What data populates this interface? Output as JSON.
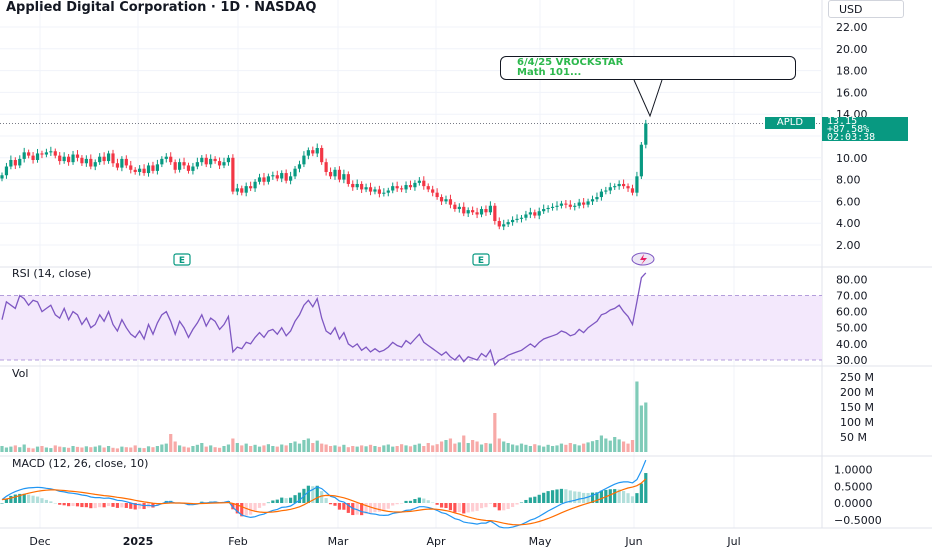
{
  "header": {
    "title": "Applied Digital Corporation · 1D · NASDAQ",
    "currency": "USD"
  },
  "annotation": {
    "line1": "6/4/25 VROCKSTAR",
    "line2": "Math 101..."
  },
  "price_label": {
    "symbol": "APLD",
    "price": "13.15",
    "change": "+87.58%",
    "countdown": "02:03:38"
  },
  "colors": {
    "up": "#089981",
    "down": "#f23645",
    "rsi_line": "#7e57c2",
    "rsi_band": "#f3e8fc",
    "macd_line": "#2196f3",
    "signal_line": "#ff6d00",
    "callout_text": "#2db84d"
  },
  "chart_data": [
    {
      "type": "candlestick",
      "panel": "price",
      "y_ticks": [
        "22.00",
        "20.00",
        "18.00",
        "16.00",
        "14.00",
        "12.00",
        "10.00",
        "8.00",
        "6.00",
        "4.00",
        "2.00"
      ],
      "x_ticks": [
        "Dec",
        "2025",
        "Feb",
        "Mar",
        "Apr",
        "May",
        "Jun",
        "Jul"
      ],
      "ylim": [
        0.5,
        23.5
      ],
      "last_price": 13.15,
      "earnings_markers": [
        "E",
        "E"
      ],
      "close": [
        8.4,
        9.2,
        9.8,
        9.3,
        9.9,
        10.5,
        10.2,
        9.8,
        10.4,
        10.3,
        10.5,
        10.6,
        10.2,
        9.7,
        10.1,
        9.6,
        10.3,
        10.0,
        9.5,
        9.9,
        9.2,
        9.6,
        10.1,
        9.7,
        10.4,
        9.5,
        9.1,
        9.9,
        9.3,
        8.9,
        8.7,
        9.0,
        8.6,
        9.3,
        8.8,
        9.4,
        9.9,
        10.1,
        9.6,
        8.9,
        9.6,
        9.3,
        8.8,
        9.2,
        9.6,
        10.0,
        9.4,
        9.9,
        9.7,
        9.3,
        9.6,
        10.0,
        6.9,
        7.2,
        6.8,
        7.4,
        7.2,
        7.8,
        8.2,
        7.8,
        8.3,
        8.4,
        8.1,
        8.6,
        7.9,
        8.3,
        9.0,
        9.4,
        10.2,
        10.7,
        10.4,
        10.9,
        9.6,
        8.7,
        8.3,
        8.9,
        8.0,
        8.5,
        7.6,
        7.3,
        7.6,
        7.1,
        7.3,
        6.9,
        7.1,
        6.7,
        6.8,
        7.0,
        7.4,
        7.2,
        7.1,
        7.5,
        7.3,
        7.7,
        7.9,
        7.4,
        7.1,
        6.8,
        6.4,
        6.0,
        6.2,
        5.7,
        5.3,
        5.5,
        4.9,
        5.2,
        5.0,
        4.8,
        5.3,
        5.0,
        5.6,
        4.2,
        3.7,
        3.9,
        4.1,
        4.3,
        4.4,
        4.5,
        4.8,
        5.0,
        4.7,
        5.1,
        5.3,
        5.4,
        5.5,
        5.6,
        5.8,
        5.7,
        5.5,
        5.6,
        5.9,
        5.7,
        6.0,
        6.2,
        6.4,
        6.9,
        7.0,
        7.3,
        7.4,
        7.6,
        7.4,
        7.2,
        6.8,
        8.3,
        11.2,
        13.15
      ]
    },
    {
      "type": "line",
      "panel": "RSI",
      "title": "RSI (14, close)",
      "y_ticks": [
        "80.00",
        "70.00",
        "60.00",
        "50.00",
        "40.00",
        "30.00"
      ],
      "band": [
        30,
        70
      ],
      "values": [
        55,
        66,
        64,
        62,
        70,
        68,
        64,
        67,
        66,
        60,
        62,
        64,
        58,
        56,
        62,
        55,
        60,
        58,
        52,
        56,
        50,
        52,
        58,
        54,
        60,
        52,
        48,
        55,
        50,
        46,
        44,
        48,
        43,
        52,
        46,
        53,
        58,
        60,
        54,
        46,
        54,
        50,
        44,
        49,
        53,
        58,
        51,
        56,
        54,
        49,
        52,
        57,
        35,
        38,
        37,
        41,
        40,
        44,
        47,
        44,
        48,
        49,
        46,
        50,
        45,
        48,
        54,
        58,
        64,
        67,
        63,
        68,
        56,
        48,
        46,
        50,
        43,
        47,
        40,
        38,
        40,
        36,
        38,
        35,
        37,
        35,
        36,
        38,
        41,
        39,
        38,
        42,
        40,
        43,
        46,
        41,
        39,
        37,
        35,
        33,
        35,
        32,
        30,
        33,
        29,
        32,
        31,
        30,
        34,
        32,
        36,
        27,
        30,
        31,
        33,
        34,
        35,
        36,
        38,
        40,
        38,
        41,
        43,
        44,
        45,
        46,
        48,
        47,
        45,
        46,
        49,
        47,
        50,
        52,
        54,
        58,
        59,
        61,
        62,
        64,
        60,
        57,
        52,
        66,
        81,
        84
      ]
    },
    {
      "type": "bar",
      "panel": "Vol",
      "title": "Vol",
      "y_ticks": [
        "250 M",
        "200 M",
        "150 M",
        "100 M",
        "50 M"
      ],
      "values": [
        20,
        15,
        18,
        22,
        16,
        25,
        14,
        12,
        18,
        20,
        15,
        13,
        22,
        18,
        16,
        14,
        20,
        17,
        15,
        19,
        16,
        18,
        22,
        15,
        20,
        14,
        12,
        18,
        16,
        15,
        22,
        14,
        13,
        19,
        16,
        20,
        25,
        28,
        60,
        35,
        22,
        18,
        15,
        20,
        24,
        30,
        18,
        22,
        16,
        14,
        20,
        25,
        45,
        30,
        22,
        28,
        20,
        24,
        18,
        22,
        26,
        20,
        18,
        25,
        22,
        30,
        35,
        28,
        40,
        45,
        30,
        38,
        28,
        25,
        20,
        22,
        18,
        24,
        16,
        20,
        18,
        22,
        19,
        24,
        20,
        17,
        22,
        25,
        18,
        20,
        26,
        22,
        19,
        24,
        28,
        20,
        30,
        22,
        26,
        35,
        40,
        45,
        28,
        32,
        55,
        30,
        40,
        35,
        25,
        30,
        28,
        130,
        45,
        35,
        30,
        25,
        22,
        28,
        24,
        20,
        26,
        22,
        18,
        24,
        20,
        22,
        28,
        24,
        30,
        26,
        22,
        28,
        32,
        36,
        40,
        55,
        45,
        38,
        50,
        42,
        35,
        28,
        40,
        235,
        155,
        165
      ]
    },
    {
      "type": "line",
      "panel": "MACD",
      "title": "MACD (12, 26, close, 10)",
      "y_ticks": [
        "1.0000",
        "0.5000",
        "0.0000",
        "−0.5000"
      ],
      "macd": [
        0.1,
        0.2,
        0.28,
        0.34,
        0.39,
        0.43,
        0.45,
        0.46,
        0.47,
        0.46,
        0.44,
        0.42,
        0.39,
        0.35,
        0.33,
        0.3,
        0.29,
        0.27,
        0.24,
        0.22,
        0.18,
        0.16,
        0.16,
        0.14,
        0.15,
        0.12,
        0.08,
        0.07,
        0.04,
        0.0,
        -0.04,
        -0.05,
        -0.08,
        -0.07,
        -0.09,
        -0.07,
        -0.02,
        0.03,
        0.04,
        0.0,
        0.0,
        -0.01,
        -0.05,
        -0.05,
        -0.03,
        0.01,
        0.0,
        0.02,
        0.03,
        0.01,
        0.02,
        0.05,
        -0.13,
        -0.25,
        -0.36,
        -0.4,
        -0.43,
        -0.41,
        -0.36,
        -0.33,
        -0.27,
        -0.22,
        -0.19,
        -0.13,
        -0.12,
        -0.09,
        -0.01,
        0.08,
        0.21,
        0.34,
        0.4,
        0.48,
        0.43,
        0.32,
        0.2,
        0.16,
        0.06,
        0.03,
        -0.07,
        -0.16,
        -0.2,
        -0.26,
        -0.28,
        -0.32,
        -0.33,
        -0.36,
        -0.37,
        -0.36,
        -0.31,
        -0.29,
        -0.27,
        -0.22,
        -0.21,
        -0.16,
        -0.11,
        -0.11,
        -0.13,
        -0.17,
        -0.22,
        -0.29,
        -0.32,
        -0.39,
        -0.47,
        -0.5,
        -0.57,
        -0.59,
        -0.61,
        -0.63,
        -0.6,
        -0.6,
        -0.54,
        -0.62,
        -0.71,
        -0.74,
        -0.74,
        -0.72,
        -0.68,
        -0.64,
        -0.58,
        -0.51,
        -0.47,
        -0.4,
        -0.32,
        -0.24,
        -0.17,
        -0.1,
        -0.03,
        0.02,
        0.05,
        0.08,
        0.12,
        0.14,
        0.18,
        0.23,
        0.28,
        0.36,
        0.43,
        0.5,
        0.56,
        0.61,
        0.63,
        0.63,
        0.6,
        0.7,
        0.96,
        1.28
      ]
    }
  ]
}
